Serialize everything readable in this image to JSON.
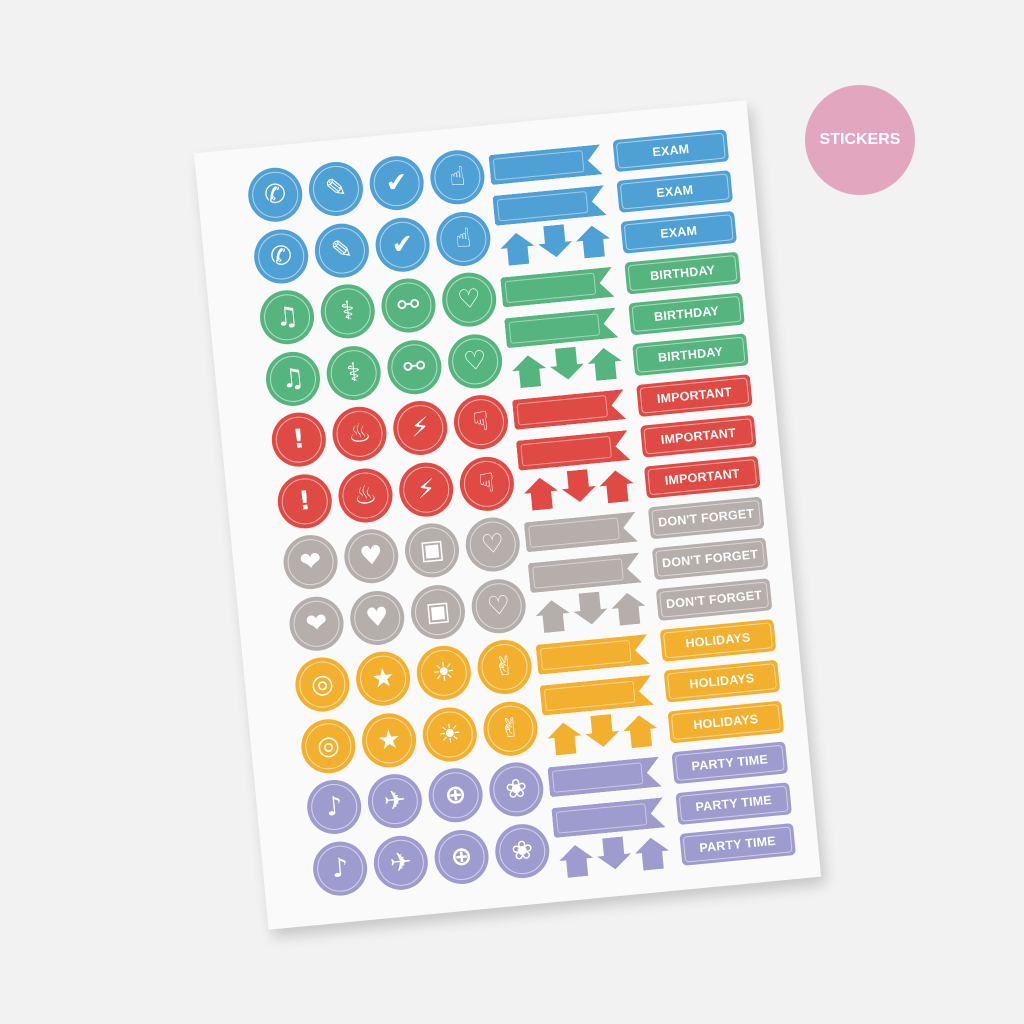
{
  "badge": {
    "text": "STICKERS",
    "color": "#e2a6bf"
  },
  "groups": [
    {
      "color": "#4fa0d4",
      "label": "EXAM",
      "icons": [
        "whatsapp-icon",
        "pushpin-icon",
        "checkmark-icon",
        "thumbs-up-icon"
      ]
    },
    {
      "color": "#56b57e",
      "label": "BIRTHDAY",
      "icons": [
        "music-icon",
        "stethoscope-icon",
        "dumbbell-icon",
        "finger-heart-icon"
      ]
    },
    {
      "color": "#e04a44",
      "label": "IMPORTANT",
      "icons": [
        "exclamation-icon",
        "fire-icon",
        "lightning-icon",
        "thumbs-down-icon"
      ]
    },
    {
      "color": "#b5aeab",
      "label": "DON'T FORGET",
      "icons": [
        "like-bubble-icon",
        "heart-icon",
        "gift-icon",
        "hand-heart-icon"
      ]
    },
    {
      "color": "#f2b02e",
      "label": "HOLIDAYS",
      "icons": [
        "instagram-icon",
        "star-icon",
        "lightbulb-icon",
        "peace-sign-icon"
      ]
    },
    {
      "color": "#9e9bcf",
      "label": "PARTY TIME",
      "icons": [
        "tiktok-icon",
        "airplane-icon",
        "gamepad-icon",
        "paw-icon"
      ]
    }
  ]
}
